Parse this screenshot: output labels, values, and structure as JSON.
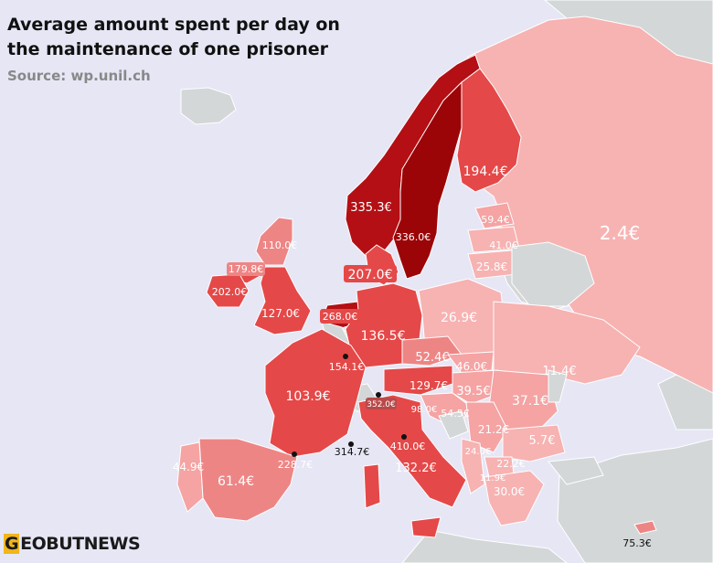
{
  "title": "Average amount spent per day on the maintenance of one prisoner",
  "source": "Source: wp.unil.ch",
  "logo": {
    "first_letter": "G",
    "rest": "EOBUTNEWS"
  },
  "colors": {
    "sea": "#e6e6f5",
    "no_data": "#d3d7d8",
    "very_low": "#f7b2b2",
    "low": "#f5a3a3",
    "mid": "#ee8585",
    "high": "#e54848",
    "very_high": "#b30f14",
    "top": "#9c0508",
    "border": "#ffffff"
  },
  "countries": [
    {
      "name": "Russia",
      "value": "2.4€"
    },
    {
      "name": "Norway",
      "value": "335.3€"
    },
    {
      "name": "Sweden",
      "value": "336.0€"
    },
    {
      "name": "Finland",
      "value": "194.4€"
    },
    {
      "name": "Estonia",
      "value": "59.4€"
    },
    {
      "name": "Latvia",
      "value": "41.0€"
    },
    {
      "name": "Lithuania",
      "value": "25.8€"
    },
    {
      "name": "Denmark",
      "value": "207.0€"
    },
    {
      "name": "Scotland",
      "value": "110.0€"
    },
    {
      "name": "Northern Ireland",
      "value": "179.8€"
    },
    {
      "name": "Ireland",
      "value": "202.0€"
    },
    {
      "name": "England and Wales",
      "value": "127.0€"
    },
    {
      "name": "Netherlands",
      "value": "268.0€"
    },
    {
      "name": "Germany",
      "value": "136.5€"
    },
    {
      "name": "Poland",
      "value": "26.9€"
    },
    {
      "name": "Luxembourg",
      "value": "154.1€"
    },
    {
      "name": "Czech Republic",
      "value": "52.4€"
    },
    {
      "name": "Slovakia",
      "value": "46.0€"
    },
    {
      "name": "Ukraine",
      "value": "11.4€"
    },
    {
      "name": "Austria",
      "value": "129.7€"
    },
    {
      "name": "Hungary",
      "value": "39.5€"
    },
    {
      "name": "Romania",
      "value": "37.1€"
    },
    {
      "name": "France",
      "value": "103.9€"
    },
    {
      "name": "Liechtenstein",
      "value": "352.0€"
    },
    {
      "name": "Slovenia",
      "value": "98.0€"
    },
    {
      "name": "Croatia",
      "value": "54.5€"
    },
    {
      "name": "Serbia",
      "value": "21.2€"
    },
    {
      "name": "Bulgaria",
      "value": "5.7€"
    },
    {
      "name": "Monaco",
      "value": "314.7€"
    },
    {
      "name": "San Marino",
      "value": "410.0€"
    },
    {
      "name": "Montenegro",
      "value": "24.0€"
    },
    {
      "name": "North Macedonia",
      "value": "22.2€"
    },
    {
      "name": "Albania",
      "value": "11.9€"
    },
    {
      "name": "Portugal",
      "value": "44.9€"
    },
    {
      "name": "Spain",
      "value": "61.4€"
    },
    {
      "name": "Andorra",
      "value": "228.7€"
    },
    {
      "name": "Italy",
      "value": "132.2€"
    },
    {
      "name": "Greece",
      "value": "30.0€"
    },
    {
      "name": "Cyprus",
      "value": "75.3€"
    }
  ]
}
